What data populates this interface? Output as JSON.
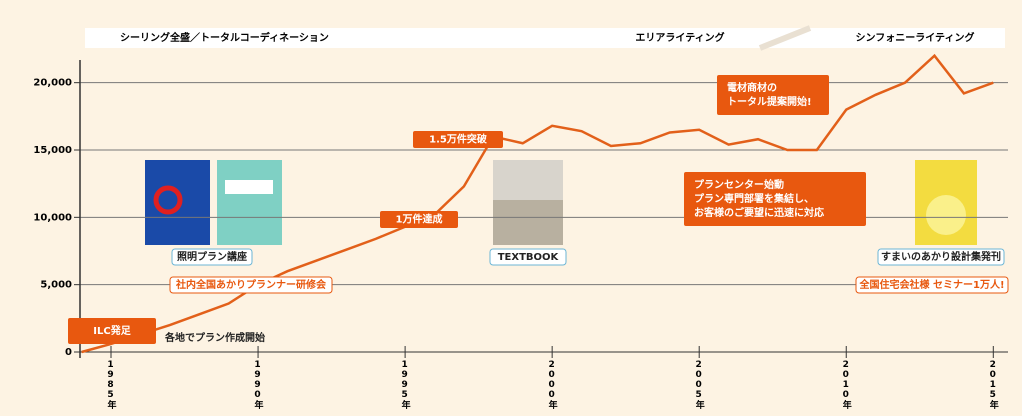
{
  "chart_data": {
    "type": "line",
    "bands": [
      "シーリング全盛／トータルコーディネーション",
      "エリアライティング",
      "シンフォニーライティング"
    ],
    "x": [
      1984,
      1985,
      1986,
      1987,
      1988,
      1989,
      1990,
      1991,
      1992,
      1993,
      1994,
      1995,
      1996,
      1997,
      1998,
      1999,
      2000,
      2001,
      2002,
      2003,
      2004,
      2005,
      2006,
      2007,
      2008,
      2009,
      2010,
      2011,
      2012,
      2013,
      2014,
      2015
    ],
    "series": [
      {
        "color": "#e2601a",
        "values": [
          0,
          600,
          1300,
          2000,
          2800,
          3600,
          5000,
          6000,
          6800,
          7600,
          8400,
          9300,
          10200,
          12300,
          16000,
          15500,
          16800,
          16400,
          15300,
          15500,
          16300,
          16500,
          15400,
          15800,
          15000,
          15000,
          18000,
          19100,
          20000,
          22000,
          19200,
          20000
        ]
      }
    ],
    "xlim": [
      1984,
      2015.5
    ],
    "xticks": [
      {
        "value": 1985,
        "label": "1985年"
      },
      {
        "value": 1990,
        "label": "1990年"
      },
      {
        "value": 1995,
        "label": "1995年"
      },
      {
        "value": 2000,
        "label": "2000年"
      },
      {
        "value": 2005,
        "label": "2005年"
      },
      {
        "value": 2010,
        "label": "2010年"
      },
      {
        "value": 2015,
        "label": "2015年"
      }
    ],
    "ylim": [
      0,
      22500
    ],
    "yticks": [
      0,
      {
        "value": 5000,
        "label": "5,000"
      },
      {
        "value": 10000,
        "label": "10,000"
      },
      {
        "value": 15000,
        "label": "15,000"
      },
      {
        "value": 20000,
        "label": "20,000"
      }
    ],
    "grid": true,
    "annotations": [
      {
        "style": "big",
        "lines": [
          "ILC発足"
        ]
      },
      {
        "style": "plain",
        "lines": [
          "各地でプラン作成開始"
        ]
      },
      {
        "style": "filled",
        "lines": [
          "1万件達成"
        ]
      },
      {
        "style": "filled",
        "lines": [
          "1.5万件突破"
        ]
      },
      {
        "style": "filled",
        "lines": [
          "電材商材の",
          "トータル提案開始!"
        ]
      },
      {
        "style": "filled",
        "lines": [
          "プランセンター始動",
          "プラン専門部署を集結し、",
          "お客様のご要望に迅速に対応"
        ]
      },
      {
        "style": "book",
        "lines": [
          "照明プラン講座"
        ]
      },
      {
        "style": "book",
        "lines": [
          "TEXTBOOK"
        ]
      },
      {
        "style": "book",
        "lines": [
          "すまいのあかり設計集発刊"
        ]
      },
      {
        "style": "outline",
        "lines": [
          "社内全国あかりプランナー研修会"
        ]
      },
      {
        "style": "outline",
        "lines": [
          "全国住宅会社様 セミナー1万人!"
        ]
      }
    ]
  }
}
